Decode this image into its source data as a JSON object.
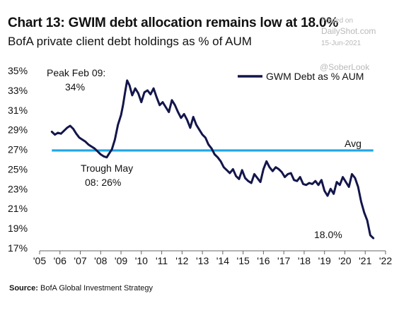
{
  "title": "Chart 13: GWIM debt allocation remains low at 18.0%",
  "subtitle": "BofA private client debt holdings as % of AUM",
  "watermark": {
    "posted_on": "Posted on",
    "site": "DailyShot.com",
    "date": "15-Jun-2021",
    "handle": "@SoberLook"
  },
  "source": {
    "label": "Source:",
    "text": "BofA Global Investment Strategy"
  },
  "colors": {
    "series": "#13164a",
    "avg": "#1ea7e8"
  },
  "chart_data": {
    "type": "line",
    "title": "",
    "xlabel": "",
    "ylabel": "",
    "xlim": [
      2005.0,
      2022.0
    ],
    "ylim": [
      17,
      35
    ],
    "grid": false,
    "legend_placement": "top-right",
    "y_ticks": [
      17,
      19,
      21,
      23,
      25,
      27,
      29,
      31,
      33,
      35
    ],
    "y_tick_labels": [
      "17%",
      "19%",
      "21%",
      "23%",
      "25%",
      "27%",
      "29%",
      "31%",
      "33%",
      "35%"
    ],
    "x_ticks": [
      2005,
      2006,
      2007,
      2008,
      2009,
      2010,
      2011,
      2012,
      2013,
      2014,
      2015,
      2016,
      2017,
      2018,
      2019,
      2020,
      2021,
      2022
    ],
    "x_tick_labels": [
      "'05",
      "'06",
      "'07",
      "'08",
      "'09",
      "'10",
      "'11",
      "'12",
      "'13",
      "'14",
      "'15",
      "'16",
      "'17",
      "'18",
      "'19",
      "'20",
      "'21",
      "'22"
    ],
    "series": [
      {
        "name": "GWM Debt as % AUM",
        "x": [
          2005.6,
          2005.75,
          2005.9,
          2006.05,
          2006.2,
          2006.35,
          2006.5,
          2006.65,
          2006.8,
          2006.95,
          2007.1,
          2007.25,
          2007.4,
          2007.55,
          2007.7,
          2007.85,
          2008.0,
          2008.15,
          2008.3,
          2008.42,
          2008.55,
          2008.7,
          2008.85,
          2009.0,
          2009.1,
          2009.2,
          2009.3,
          2009.42,
          2009.55,
          2009.7,
          2009.85,
          2010.0,
          2010.15,
          2010.3,
          2010.45,
          2010.6,
          2010.75,
          2010.9,
          2011.05,
          2011.2,
          2011.35,
          2011.5,
          2011.65,
          2011.8,
          2011.95,
          2012.1,
          2012.25,
          2012.4,
          2012.55,
          2012.7,
          2012.85,
          2013.0,
          2013.15,
          2013.3,
          2013.45,
          2013.6,
          2013.75,
          2013.9,
          2014.05,
          2014.2,
          2014.35,
          2014.5,
          2014.65,
          2014.8,
          2014.95,
          2015.1,
          2015.25,
          2015.4,
          2015.55,
          2015.7,
          2015.85,
          2016.0,
          2016.15,
          2016.3,
          2016.45,
          2016.6,
          2016.75,
          2016.9,
          2017.05,
          2017.2,
          2017.35,
          2017.5,
          2017.65,
          2017.8,
          2017.95,
          2018.1,
          2018.25,
          2018.4,
          2018.55,
          2018.7,
          2018.85,
          2019.0,
          2019.15,
          2019.3,
          2019.45,
          2019.6,
          2019.75,
          2019.9,
          2020.05,
          2020.2,
          2020.35,
          2020.5,
          2020.65,
          2020.8,
          2020.95,
          2021.1,
          2021.25,
          2021.4
        ],
        "y": [
          28.8,
          28.5,
          28.7,
          28.6,
          28.9,
          29.2,
          29.4,
          29.1,
          28.6,
          28.2,
          28.0,
          27.8,
          27.5,
          27.3,
          27.1,
          26.8,
          26.5,
          26.3,
          26.2,
          26.6,
          27.0,
          28.0,
          29.5,
          30.5,
          31.5,
          32.8,
          34.0,
          33.5,
          32.5,
          33.2,
          32.7,
          31.8,
          32.8,
          33.0,
          32.6,
          33.2,
          32.3,
          31.5,
          31.8,
          31.3,
          30.8,
          32.0,
          31.5,
          30.8,
          30.2,
          30.6,
          30.0,
          29.2,
          30.3,
          29.5,
          29.0,
          28.5,
          28.2,
          27.5,
          27.1,
          26.5,
          26.2,
          25.8,
          25.2,
          24.9,
          24.6,
          25.0,
          24.3,
          24.0,
          24.9,
          24.1,
          23.8,
          23.6,
          24.5,
          24.1,
          23.7,
          25.0,
          25.8,
          25.2,
          24.8,
          25.2,
          25.0,
          24.7,
          24.2,
          24.5,
          24.6,
          23.9,
          23.8,
          24.2,
          23.5,
          23.4,
          23.6,
          23.5,
          23.8,
          23.4,
          23.9,
          22.8,
          22.3,
          23.0,
          22.5,
          23.7,
          23.4,
          24.2,
          23.7,
          23.2,
          24.5,
          24.1,
          23.2,
          21.7,
          20.6,
          19.8,
          18.3,
          18.0
        ]
      },
      {
        "name": "Avg",
        "x": [
          2005.6,
          2021.4
        ],
        "y": [
          26.9,
          26.9
        ]
      }
    ],
    "annotations": [
      {
        "text_lines": [
          "Peak Feb 09:",
          "34%"
        ],
        "x": 2009.1,
        "y": 34.0
      },
      {
        "text_lines": [
          "Trough May",
          "08: 26%"
        ],
        "x": 2008.4,
        "y": 26.2
      },
      {
        "text_lines": [
          "18.0%"
        ],
        "x": 2021.4,
        "y": 18.0
      },
      {
        "text_lines": [
          "Avg"
        ],
        "x": 2021.4,
        "y": 26.9
      }
    ]
  }
}
